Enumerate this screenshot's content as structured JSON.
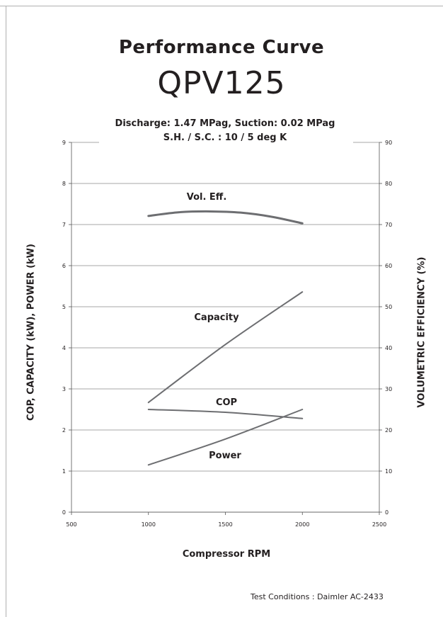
{
  "page": {
    "title": "Performance Curve",
    "model": "QPV125",
    "subtitle_line1": "Discharge: 1.47 MPag, Suction: 0.02 MPag",
    "subtitle_line2": "S.H. / S.C. : 10 / 5 deg K",
    "footer": "Test Conditions :  Daimler AC-2433"
  },
  "chart_data": {
    "type": "line",
    "xlabel": "Compressor RPM",
    "ylabel_left": "COP, CAPACITY (kW), POWER (kW)",
    "ylabel_right": "VOLUMETRIC EFFICIENCY (%)",
    "xlim": [
      500,
      2500
    ],
    "ylim_left": [
      0,
      9
    ],
    "ylim_right": [
      0,
      90
    ],
    "xticks": [
      500,
      1000,
      1500,
      2000,
      2500
    ],
    "yticks_left": [
      0,
      1,
      2,
      3,
      4,
      5,
      6,
      7,
      8,
      9
    ],
    "yticks_right": [
      0,
      10,
      20,
      30,
      40,
      50,
      60,
      70,
      80,
      90
    ],
    "grid": "horizontal",
    "line_color": "#6d6e71",
    "series": [
      {
        "name": "Vol. Eff.",
        "axis": "right",
        "x": [
          1000,
          1200,
          1400,
          1600,
          1800,
          2000
        ],
        "values": [
          72.1,
          73.0,
          73.2,
          72.9,
          71.9,
          70.3
        ]
      },
      {
        "name": "Capacity",
        "axis": "left",
        "x": [
          1000,
          1500,
          2000
        ],
        "values": [
          2.67,
          4.08,
          5.36
        ]
      },
      {
        "name": "COP",
        "axis": "left",
        "x": [
          1000,
          1500,
          2000
        ],
        "values": [
          2.5,
          2.43,
          2.28
        ]
      },
      {
        "name": "Power",
        "axis": "left",
        "x": [
          1000,
          1500,
          2000
        ],
        "values": [
          1.15,
          1.78,
          2.5
        ]
      }
    ]
  }
}
